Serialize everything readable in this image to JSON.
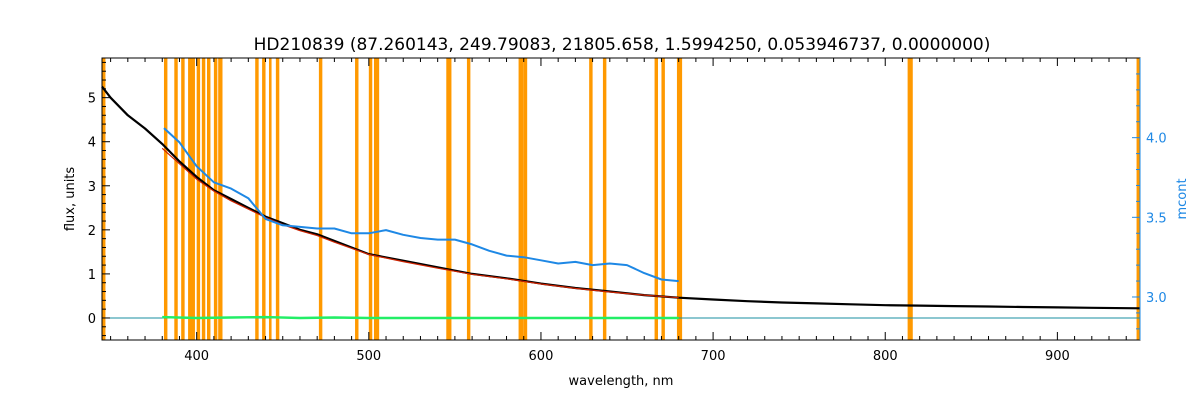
{
  "chart_data": {
    "type": "line",
    "title": "HD210839    (87.260143, 249.79083, 21805.658, 1.5994250, 0.053946737, 0.0000000)",
    "xlabel": "wavelength, nm",
    "ylabel": "flux, units",
    "y2label": "mcont",
    "xlim": [
      345,
      948
    ],
    "ylim": [
      -0.5,
      5.9
    ],
    "y2lim": [
      2.73,
      4.5
    ],
    "x_ticks": [
      400,
      500,
      600,
      700,
      800,
      900
    ],
    "y_ticks": [
      0,
      1,
      2,
      3,
      4,
      5
    ],
    "y2_ticks": [
      3.0,
      3.5,
      4.0
    ],
    "grid": false,
    "colors": {
      "observed": "#000000",
      "model": "#cc2200",
      "residual": "#22ee66",
      "mcont": "#1e88e5",
      "masked": "#ff9900",
      "zero_line": "#1a8fa0"
    },
    "masked_regions": [
      [
        345,
        347
      ],
      [
        381,
        383
      ],
      [
        387,
        389
      ],
      [
        391,
        393
      ],
      [
        395,
        399
      ],
      [
        400,
        402
      ],
      [
        403,
        405
      ],
      [
        406,
        408
      ],
      [
        410,
        412
      ],
      [
        412.5,
        415
      ],
      [
        434,
        436
      ],
      [
        438,
        440
      ],
      [
        442,
        443.5
      ],
      [
        446,
        448
      ],
      [
        471,
        473
      ],
      [
        492,
        494
      ],
      [
        500,
        502
      ],
      [
        503,
        506
      ],
      [
        545,
        548
      ],
      [
        557,
        559
      ],
      [
        587,
        590
      ],
      [
        590,
        592
      ],
      [
        628,
        630
      ],
      [
        636,
        638
      ],
      [
        666,
        668
      ],
      [
        670,
        672
      ],
      [
        679,
        682
      ],
      [
        813,
        816
      ],
      [
        946,
        948
      ]
    ],
    "series": [
      {
        "id": "observed",
        "x": [
          345,
          350,
          360,
          370,
          380,
          390,
          400,
          410,
          420,
          430,
          440,
          450,
          460,
          470,
          480,
          490,
          500,
          520,
          540,
          560,
          580,
          600,
          620,
          640,
          660,
          680,
          700,
          720,
          740,
          760,
          780,
          800,
          820,
          840,
          860,
          880,
          900,
          920,
          948
        ],
        "y": [
          5.25,
          5.0,
          4.6,
          4.3,
          3.95,
          3.55,
          3.2,
          2.9,
          2.7,
          2.5,
          2.3,
          2.15,
          2.0,
          1.9,
          1.75,
          1.6,
          1.45,
          1.3,
          1.15,
          1.0,
          0.9,
          0.78,
          0.68,
          0.6,
          0.52,
          0.46,
          0.42,
          0.38,
          0.35,
          0.33,
          0.31,
          0.29,
          0.28,
          0.27,
          0.26,
          0.25,
          0.24,
          0.23,
          0.22
        ]
      },
      {
        "id": "model",
        "x": [
          380,
          390,
          400,
          410,
          420,
          430,
          440,
          450,
          460,
          470,
          480,
          490,
          500,
          520,
          540,
          560,
          580,
          600,
          620,
          640,
          660,
          680
        ],
        "y": [
          3.85,
          3.5,
          3.15,
          2.88,
          2.66,
          2.47,
          2.28,
          2.12,
          1.98,
          1.87,
          1.72,
          1.58,
          1.44,
          1.28,
          1.13,
          0.99,
          0.89,
          0.77,
          0.67,
          0.59,
          0.52,
          0.46
        ]
      },
      {
        "id": "residual",
        "x": [
          380,
          400,
          420,
          440,
          460,
          480,
          500,
          550,
          600,
          650,
          680
        ],
        "y": [
          0.02,
          0.0,
          0.01,
          0.02,
          0.0,
          0.01,
          0.0,
          0.0,
          0.0,
          0.0,
          0.0
        ]
      },
      {
        "id": "mcont",
        "axis": "right",
        "x": [
          381,
          390,
          400,
          410,
          420,
          430,
          440,
          450,
          460,
          470,
          480,
          490,
          500,
          510,
          520,
          530,
          540,
          550,
          560,
          570,
          580,
          590,
          600,
          610,
          620,
          630,
          640,
          650,
          660,
          670,
          680
        ],
        "y": [
          4.06,
          3.97,
          3.82,
          3.72,
          3.68,
          3.62,
          3.49,
          3.45,
          3.44,
          3.43,
          3.43,
          3.4,
          3.4,
          3.42,
          3.39,
          3.37,
          3.36,
          3.36,
          3.33,
          3.29,
          3.26,
          3.25,
          3.23,
          3.21,
          3.22,
          3.2,
          3.21,
          3.2,
          3.15,
          3.11,
          3.1
        ]
      }
    ]
  }
}
